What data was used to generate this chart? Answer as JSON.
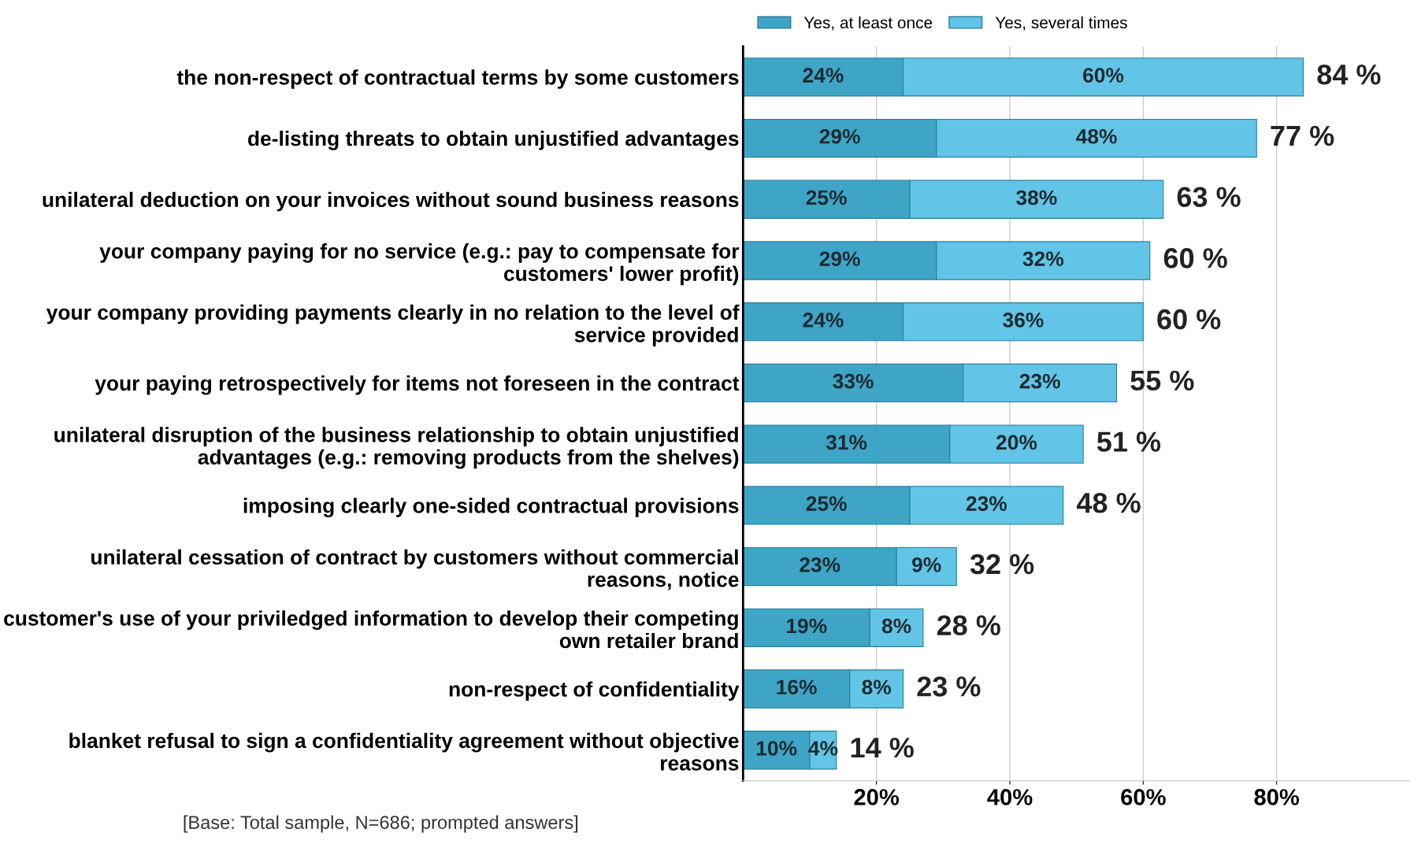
{
  "chart_data": {
    "type": "bar",
    "orientation": "horizontal",
    "stacked": true,
    "categories": [
      "the non-respect of contractual terms by some customers",
      "de-listing threats to obtain unjustified advantages",
      "unilateral deduction on your invoices without sound business reasons",
      "your company paying for no service (e.g.: pay to compensate for customers' lower profit)",
      "your company providing payments clearly in no relation to the level of service provided",
      "your paying retrospectively for items not foreseen in the contract",
      "unilateral disruption of the business relationship to obtain unjustified advantages (e.g.: removing products from the shelves)",
      "imposing clearly one-sided contractual provisions",
      "unilateral cessation of contract by customers without commercial reasons, notice",
      "customer's use of your priviledged information to develop their competing own retailer brand",
      "non-respect of confidentiality",
      "blanket refusal to sign a confidentiality agreement without objective reasons"
    ],
    "series": [
      {
        "name": "Yes, at least once",
        "color": "#3ea5c6",
        "values": [
          24,
          29,
          25,
          29,
          24,
          33,
          31,
          25,
          23,
          19,
          16,
          10
        ],
        "value_labels": [
          "24%",
          "29%",
          "25%",
          "29%",
          "24%",
          "33%",
          "31%",
          "25%",
          "23%",
          "19%",
          "16%",
          "10%"
        ]
      },
      {
        "name": "Yes, several times",
        "color": "#62c4e6",
        "values": [
          60,
          48,
          38,
          32,
          36,
          23,
          20,
          23,
          9,
          8,
          8,
          4
        ],
        "value_labels": [
          "60%",
          "48%",
          "38%",
          "32%",
          "36%",
          "23%",
          "20%",
          "23%",
          "9%",
          "8%",
          "8%",
          "4%"
        ]
      }
    ],
    "totals": [
      "84 %",
      "77 %",
      "63 %",
      "60 %",
      "60 %",
      "55 %",
      "51 %",
      "48 %",
      "32 %",
      "28 %",
      "23 %",
      "14 %"
    ],
    "xlim": [
      0,
      100
    ],
    "xticks": [
      {
        "value": 20,
        "label": "20%"
      },
      {
        "value": 40,
        "label": "40%"
      },
      {
        "value": 60,
        "label": "60%"
      },
      {
        "value": 80,
        "label": "80%"
      }
    ],
    "grid": "x",
    "legend": "top",
    "annotations": [
      "[Base: Total sample, N=686; prompted answers]"
    ]
  }
}
